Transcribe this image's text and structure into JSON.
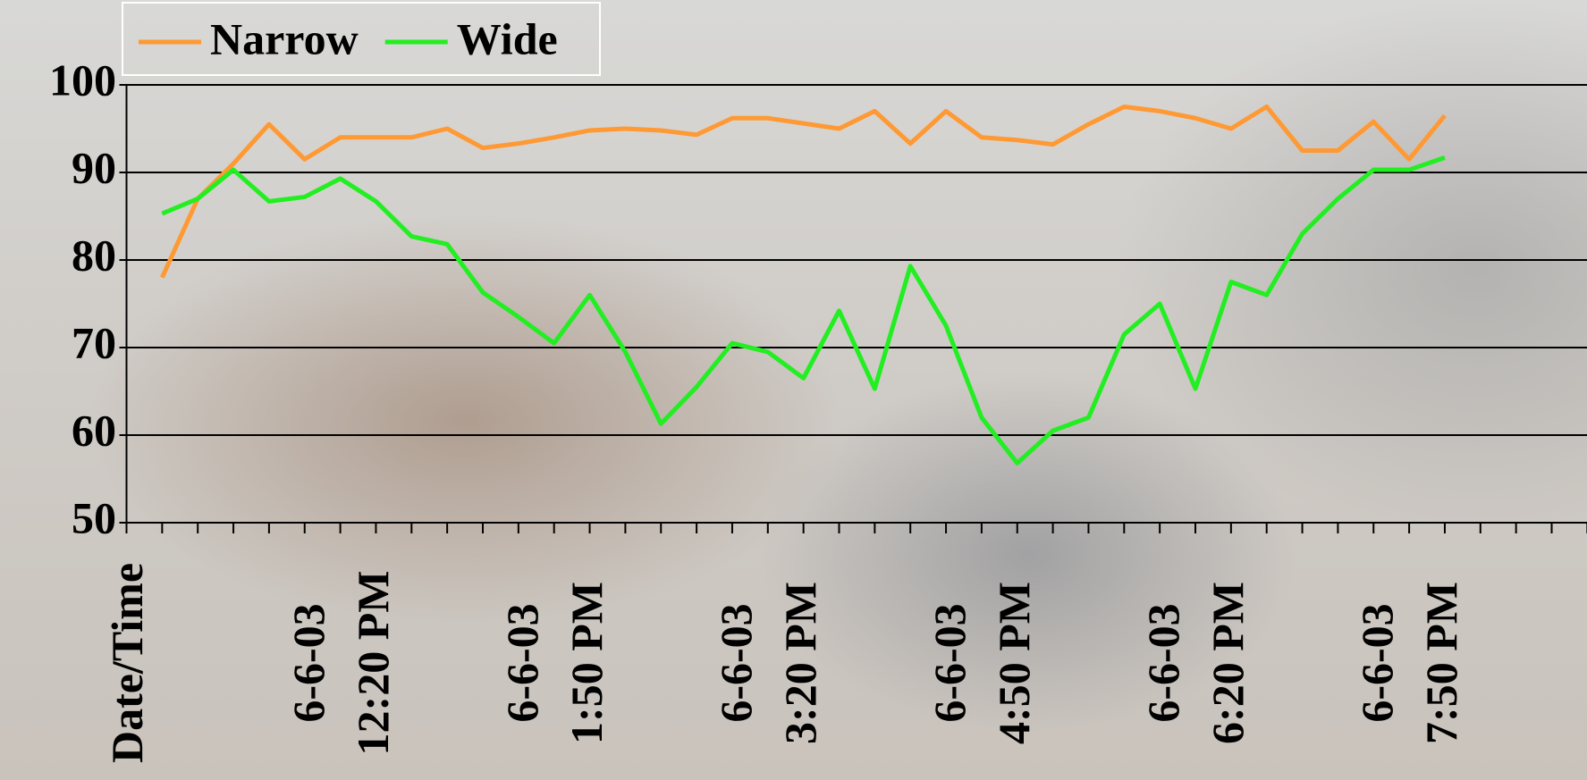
{
  "chart_data": {
    "type": "line",
    "categories": [
      "Date/Time",
      null,
      null,
      null,
      null,
      null,
      "6-6-03\n12:20 PM",
      null,
      null,
      null,
      null,
      null,
      "6-6-03\n1:50 PM",
      null,
      null,
      null,
      null,
      null,
      "6-6-03\n3:20 PM",
      null,
      null,
      null,
      null,
      null,
      "6-6-03\n4:50 PM",
      null,
      null,
      null,
      null,
      null,
      "6-6-03\n6:20 PM",
      null,
      null,
      null,
      null,
      null,
      "6-6-03\n7:50 PM",
      null,
      null,
      null,
      null,
      null
    ],
    "series": [
      {
        "name": "Narrow",
        "color": "#ff9933",
        "values": [
          null,
          78,
          87,
          91,
          95.5,
          91.5,
          94,
          94,
          94,
          95,
          92.8,
          93.3,
          94,
          94.8,
          95,
          94.8,
          94.3,
          96.2,
          96.2,
          95.6,
          95,
          97,
          93.3,
          97,
          94,
          93.7,
          93.2,
          95.5,
          97.5,
          97,
          96.2,
          95,
          97.5,
          92.5,
          92.5,
          95.8,
          91.5,
          96.5,
          null,
          null,
          null,
          null
        ]
      },
      {
        "name": "Wide",
        "color": "#22ee22",
        "values": [
          null,
          85.3,
          87,
          90.3,
          86.7,
          87.2,
          89.3,
          86.7,
          82.7,
          81.8,
          76.3,
          73.5,
          70.5,
          76,
          69.5,
          61.3,
          65.5,
          70.5,
          69.5,
          66.5,
          74.2,
          65.3,
          79.3,
          72.5,
          62,
          56.8,
          60.5,
          62,
          71.5,
          75,
          65.3,
          77.5,
          76,
          83,
          87,
          90.3,
          90.3,
          91.7,
          null,
          null,
          null,
          null
        ]
      }
    ],
    "ylim": [
      50,
      100
    ],
    "yticks": [
      50,
      60,
      70,
      80,
      90,
      100
    ],
    "grid": true,
    "legend": "top-left"
  }
}
